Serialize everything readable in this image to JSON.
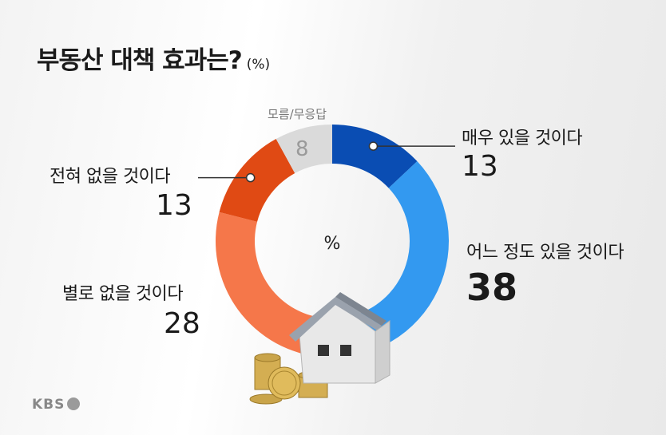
{
  "title": "부동산 대책 효과는?",
  "unit": "(%)",
  "center_label": "%",
  "logo": "KBS",
  "chart_data": {
    "type": "pie",
    "title": "부동산 대책 효과는?",
    "unit": "(%)",
    "slices": [
      {
        "label": "매우 있을 것이다",
        "value": 13,
        "color": "#0a4db3"
      },
      {
        "label": "어느 정도 있을 것이다",
        "value": 38,
        "color": "#3399f0"
      },
      {
        "label": "별로 없을 것이다",
        "value": 28,
        "color": "#f5774a"
      },
      {
        "label": "전혀 없을 것이다",
        "value": 13,
        "color": "#e04a14"
      },
      {
        "label": "모름/무응답",
        "value": 8,
        "color": "#dadada"
      }
    ]
  }
}
